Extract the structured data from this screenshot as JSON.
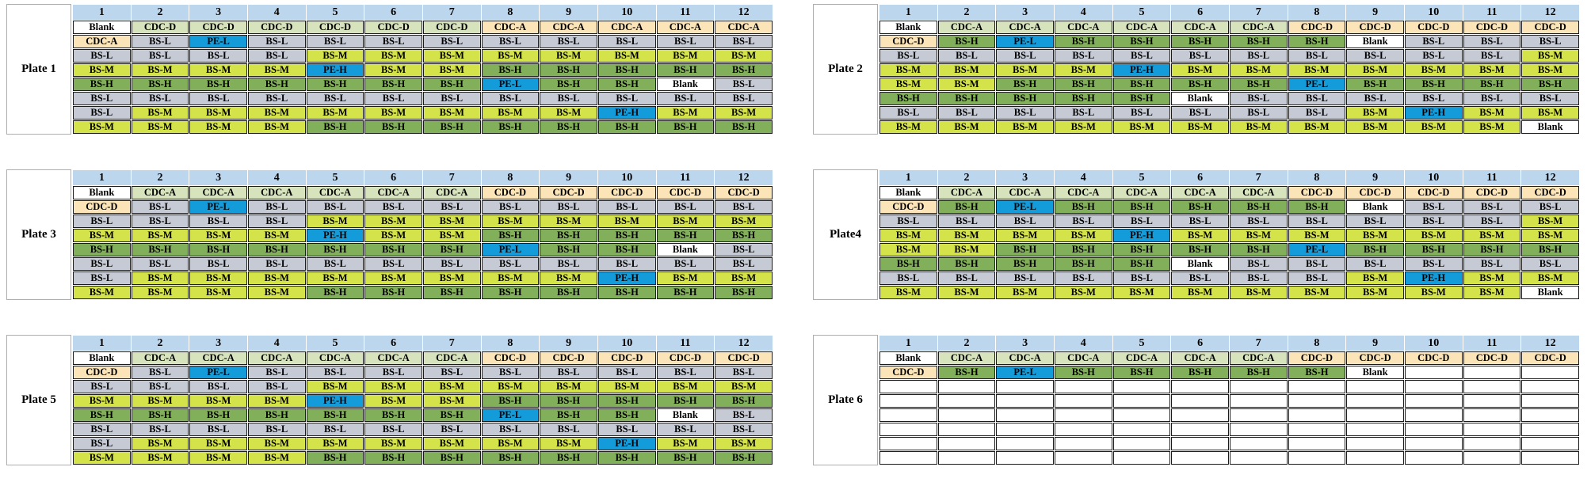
{
  "columns": [
    "1",
    "2",
    "3",
    "4",
    "5",
    "6",
    "7",
    "8",
    "9",
    "10",
    "11",
    "12"
  ],
  "colors": {
    "header_band": "#BCD6EE",
    "cdc_green": "#D6E3BD",
    "cdc_tan": "#FBE4B8",
    "bs_low_gray": "#C5CAD5",
    "bs_mid_yellowgreen": "#D5E34B",
    "bs_high_green": "#82AF5A",
    "pe_blue": "#149BD9",
    "blank_white": "#FFFFFF",
    "cell_border": "#1B1B1B"
  },
  "plates": [
    {
      "label": "Plate 1",
      "rows": [
        [
          "Blank",
          "CDC-D",
          "CDC-D",
          "CDC-D",
          "CDC-D",
          "CDC-D",
          "CDC-D",
          "CDC-A",
          "CDC-A",
          "CDC-A",
          "CDC-A",
          "CDC-A"
        ],
        [
          "CDC-A",
          "BS-L",
          "PE-L",
          "BS-L",
          "BS-L",
          "BS-L",
          "BS-L",
          "BS-L",
          "BS-L",
          "BS-L",
          "BS-L",
          "BS-L"
        ],
        [
          "BS-L",
          "BS-L",
          "BS-L",
          "BS-L",
          "BS-M",
          "BS-M",
          "BS-M",
          "BS-M",
          "BS-M",
          "BS-M",
          "BS-M",
          "BS-M"
        ],
        [
          "BS-M",
          "BS-M",
          "BS-M",
          "BS-M",
          "PE-H",
          "BS-M",
          "BS-M",
          "BS-H",
          "BS-H",
          "BS-H",
          "BS-H",
          "BS-H"
        ],
        [
          "BS-H",
          "BS-H",
          "BS-H",
          "BS-H",
          "BS-H",
          "BS-H",
          "BS-H",
          "PE-L",
          "BS-H",
          "BS-H",
          "Blank",
          "BS-L"
        ],
        [
          "BS-L",
          "BS-L",
          "BS-L",
          "BS-L",
          "BS-L",
          "BS-L",
          "BS-L",
          "BS-L",
          "BS-L",
          "BS-L",
          "BS-L",
          "BS-L"
        ],
        [
          "BS-L",
          "BS-M",
          "BS-M",
          "BS-M",
          "BS-M",
          "BS-M",
          "BS-M",
          "BS-M",
          "BS-M",
          "PE-H",
          "BS-M",
          "BS-M"
        ],
        [
          "BS-M",
          "BS-M",
          "BS-M",
          "BS-M",
          "BS-H",
          "BS-H",
          "BS-H",
          "BS-H",
          "BS-H",
          "BS-H",
          "BS-H",
          "BS-H"
        ]
      ]
    },
    {
      "label": "Plate 2",
      "rows": [
        [
          "Blank",
          "CDC-A",
          "CDC-A",
          "CDC-A",
          "CDC-A",
          "CDC-A",
          "CDC-A",
          "CDC-D",
          "CDC-D",
          "CDC-D",
          "CDC-D",
          "CDC-D"
        ],
        [
          "CDC-D",
          "BS-H",
          "PE-L",
          "BS-H",
          "BS-H",
          "BS-H",
          "BS-H",
          "BS-H",
          "Blank",
          "BS-L",
          "BS-L",
          "BS-L"
        ],
        [
          "BS-L",
          "BS-L",
          "BS-L",
          "BS-L",
          "BS-L",
          "BS-L",
          "BS-L",
          "BS-L",
          "BS-L",
          "BS-L",
          "BS-L",
          "BS-M"
        ],
        [
          "BS-M",
          "BS-M",
          "BS-M",
          "BS-M",
          "PE-H",
          "BS-M",
          "BS-M",
          "BS-M",
          "BS-M",
          "BS-M",
          "BS-M",
          "BS-M"
        ],
        [
          "BS-M",
          "BS-M",
          "BS-H",
          "BS-H",
          "BS-H",
          "BS-H",
          "BS-H",
          "PE-L",
          "BS-H",
          "BS-H",
          "BS-H",
          "BS-H"
        ],
        [
          "BS-H",
          "BS-H",
          "BS-H",
          "BS-H",
          "BS-H",
          "Blank",
          "BS-L",
          "BS-L",
          "BS-L",
          "BS-L",
          "BS-L",
          "BS-L"
        ],
        [
          "BS-L",
          "BS-L",
          "BS-L",
          "BS-L",
          "BS-L",
          "BS-L",
          "BS-L",
          "BS-L",
          "BS-M",
          "PE-H",
          "BS-M",
          "BS-M"
        ],
        [
          "BS-M",
          "BS-M",
          "BS-M",
          "BS-M",
          "BS-M",
          "BS-M",
          "BS-M",
          "BS-M",
          "BS-M",
          "BS-M",
          "BS-M",
          "Blank"
        ]
      ]
    },
    {
      "label": "Plate 3",
      "rows": [
        [
          "Blank",
          "CDC-A",
          "CDC-A",
          "CDC-A",
          "CDC-A",
          "CDC-A",
          "CDC-A",
          "CDC-D",
          "CDC-D",
          "CDC-D",
          "CDC-D",
          "CDC-D"
        ],
        [
          "CDC-D",
          "BS-L",
          "PE-L",
          "BS-L",
          "BS-L",
          "BS-L",
          "BS-L",
          "BS-L",
          "BS-L",
          "BS-L",
          "BS-L",
          "BS-L"
        ],
        [
          "BS-L",
          "BS-L",
          "BS-L",
          "BS-L",
          "BS-M",
          "BS-M",
          "BS-M",
          "BS-M",
          "BS-M",
          "BS-M",
          "BS-M",
          "BS-M"
        ],
        [
          "BS-M",
          "BS-M",
          "BS-M",
          "BS-M",
          "PE-H",
          "BS-M",
          "BS-M",
          "BS-H",
          "BS-H",
          "BS-H",
          "BS-H",
          "BS-H"
        ],
        [
          "BS-H",
          "BS-H",
          "BS-H",
          "BS-H",
          "BS-H",
          "BS-H",
          "BS-H",
          "PE-L",
          "BS-H",
          "BS-H",
          "Blank",
          "BS-L"
        ],
        [
          "BS-L",
          "BS-L",
          "BS-L",
          "BS-L",
          "BS-L",
          "BS-L",
          "BS-L",
          "BS-L",
          "BS-L",
          "BS-L",
          "BS-L",
          "BS-L"
        ],
        [
          "BS-L",
          "BS-M",
          "BS-M",
          "BS-M",
          "BS-M",
          "BS-M",
          "BS-M",
          "BS-M",
          "BS-M",
          "PE-H",
          "BS-M",
          "BS-M"
        ],
        [
          "BS-M",
          "BS-M",
          "BS-M",
          "BS-M",
          "BS-H",
          "BS-H",
          "BS-H",
          "BS-H",
          "BS-H",
          "BS-H",
          "BS-H",
          "BS-H"
        ]
      ]
    },
    {
      "label": "Plate4",
      "rows": [
        [
          "Blank",
          "CDC-A",
          "CDC-A",
          "CDC-A",
          "CDC-A",
          "CDC-A",
          "CDC-A",
          "CDC-D",
          "CDC-D",
          "CDC-D",
          "CDC-D",
          "CDC-D"
        ],
        [
          "CDC-D",
          "BS-H",
          "PE-L",
          "BS-H",
          "BS-H",
          "BS-H",
          "BS-H",
          "BS-H",
          "Blank",
          "BS-L",
          "BS-L",
          "BS-L"
        ],
        [
          "BS-L",
          "BS-L",
          "BS-L",
          "BS-L",
          "BS-L",
          "BS-L",
          "BS-L",
          "BS-L",
          "BS-L",
          "BS-L",
          "BS-L",
          "BS-M"
        ],
        [
          "BS-M",
          "BS-M",
          "BS-M",
          "BS-M",
          "PE-H",
          "BS-M",
          "BS-M",
          "BS-M",
          "BS-M",
          "BS-M",
          "BS-M",
          "BS-M"
        ],
        [
          "BS-M",
          "BS-M",
          "BS-H",
          "BS-H",
          "BS-H",
          "BS-H",
          "BS-H",
          "PE-L",
          "BS-H",
          "BS-H",
          "BS-H",
          "BS-H"
        ],
        [
          "BS-H",
          "BS-H",
          "BS-H",
          "BS-H",
          "BS-H",
          "Blank",
          "BS-L",
          "BS-L",
          "BS-L",
          "BS-L",
          "BS-L",
          "BS-L"
        ],
        [
          "BS-L",
          "BS-L",
          "BS-L",
          "BS-L",
          "BS-L",
          "BS-L",
          "BS-L",
          "BS-L",
          "BS-M",
          "PE-H",
          "BS-M",
          "BS-M"
        ],
        [
          "BS-M",
          "BS-M",
          "BS-M",
          "BS-M",
          "BS-M",
          "BS-M",
          "BS-M",
          "BS-M",
          "BS-M",
          "BS-M",
          "BS-M",
          "Blank"
        ]
      ]
    },
    {
      "label": "Plate 5",
      "rows": [
        [
          "Blank",
          "CDC-A",
          "CDC-A",
          "CDC-A",
          "CDC-A",
          "CDC-A",
          "CDC-A",
          "CDC-D",
          "CDC-D",
          "CDC-D",
          "CDC-D",
          "CDC-D"
        ],
        [
          "CDC-D",
          "BS-L",
          "PE-L",
          "BS-L",
          "BS-L",
          "BS-L",
          "BS-L",
          "BS-L",
          "BS-L",
          "BS-L",
          "BS-L",
          "BS-L"
        ],
        [
          "BS-L",
          "BS-L",
          "BS-L",
          "BS-L",
          "BS-M",
          "BS-M",
          "BS-M",
          "BS-M",
          "BS-M",
          "BS-M",
          "BS-M",
          "BS-M"
        ],
        [
          "BS-M",
          "BS-M",
          "BS-M",
          "BS-M",
          "PE-H",
          "BS-M",
          "BS-M",
          "BS-H",
          "BS-H",
          "BS-H",
          "BS-H",
          "BS-H"
        ],
        [
          "BS-H",
          "BS-H",
          "BS-H",
          "BS-H",
          "BS-H",
          "BS-H",
          "BS-H",
          "PE-L",
          "BS-H",
          "BS-H",
          "Blank",
          "BS-L"
        ],
        [
          "BS-L",
          "BS-L",
          "BS-L",
          "BS-L",
          "BS-L",
          "BS-L",
          "BS-L",
          "BS-L",
          "BS-L",
          "BS-L",
          "BS-L",
          "BS-L"
        ],
        [
          "BS-L",
          "BS-M",
          "BS-M",
          "BS-M",
          "BS-M",
          "BS-M",
          "BS-M",
          "BS-M",
          "BS-M",
          "PE-H",
          "BS-M",
          "BS-M"
        ],
        [
          "BS-M",
          "BS-M",
          "BS-M",
          "BS-M",
          "BS-H",
          "BS-H",
          "BS-H",
          "BS-H",
          "BS-H",
          "BS-H",
          "BS-H",
          "BS-H"
        ]
      ]
    },
    {
      "label": "Plate 6",
      "rows": [
        [
          "Blank",
          "CDC-A",
          "CDC-A",
          "CDC-A",
          "CDC-A",
          "CDC-A",
          "CDC-A",
          "CDC-D",
          "CDC-D",
          "CDC-D",
          "CDC-D",
          "CDC-D"
        ],
        [
          "CDC-D",
          "BS-H",
          "PE-L",
          "BS-H",
          "BS-H",
          "BS-H",
          "BS-H",
          "BS-H",
          "Blank",
          "",
          "",
          ""
        ],
        [
          "",
          "",
          "",
          "",
          "",
          "",
          "",
          "",
          "",
          "",
          "",
          ""
        ],
        [
          "",
          "",
          "",
          "",
          "",
          "",
          "",
          "",
          "",
          "",
          "",
          ""
        ],
        [
          "",
          "",
          "",
          "",
          "",
          "",
          "",
          "",
          "",
          "",
          "",
          ""
        ],
        [
          "",
          "",
          "",
          "",
          "",
          "",
          "",
          "",
          "",
          "",
          "",
          ""
        ],
        [
          "",
          "",
          "",
          "",
          "",
          "",
          "",
          "",
          "",
          "",
          "",
          ""
        ],
        [
          "",
          "",
          "",
          "",
          "",
          "",
          "",
          "",
          "",
          "",
          "",
          ""
        ]
      ]
    }
  ]
}
